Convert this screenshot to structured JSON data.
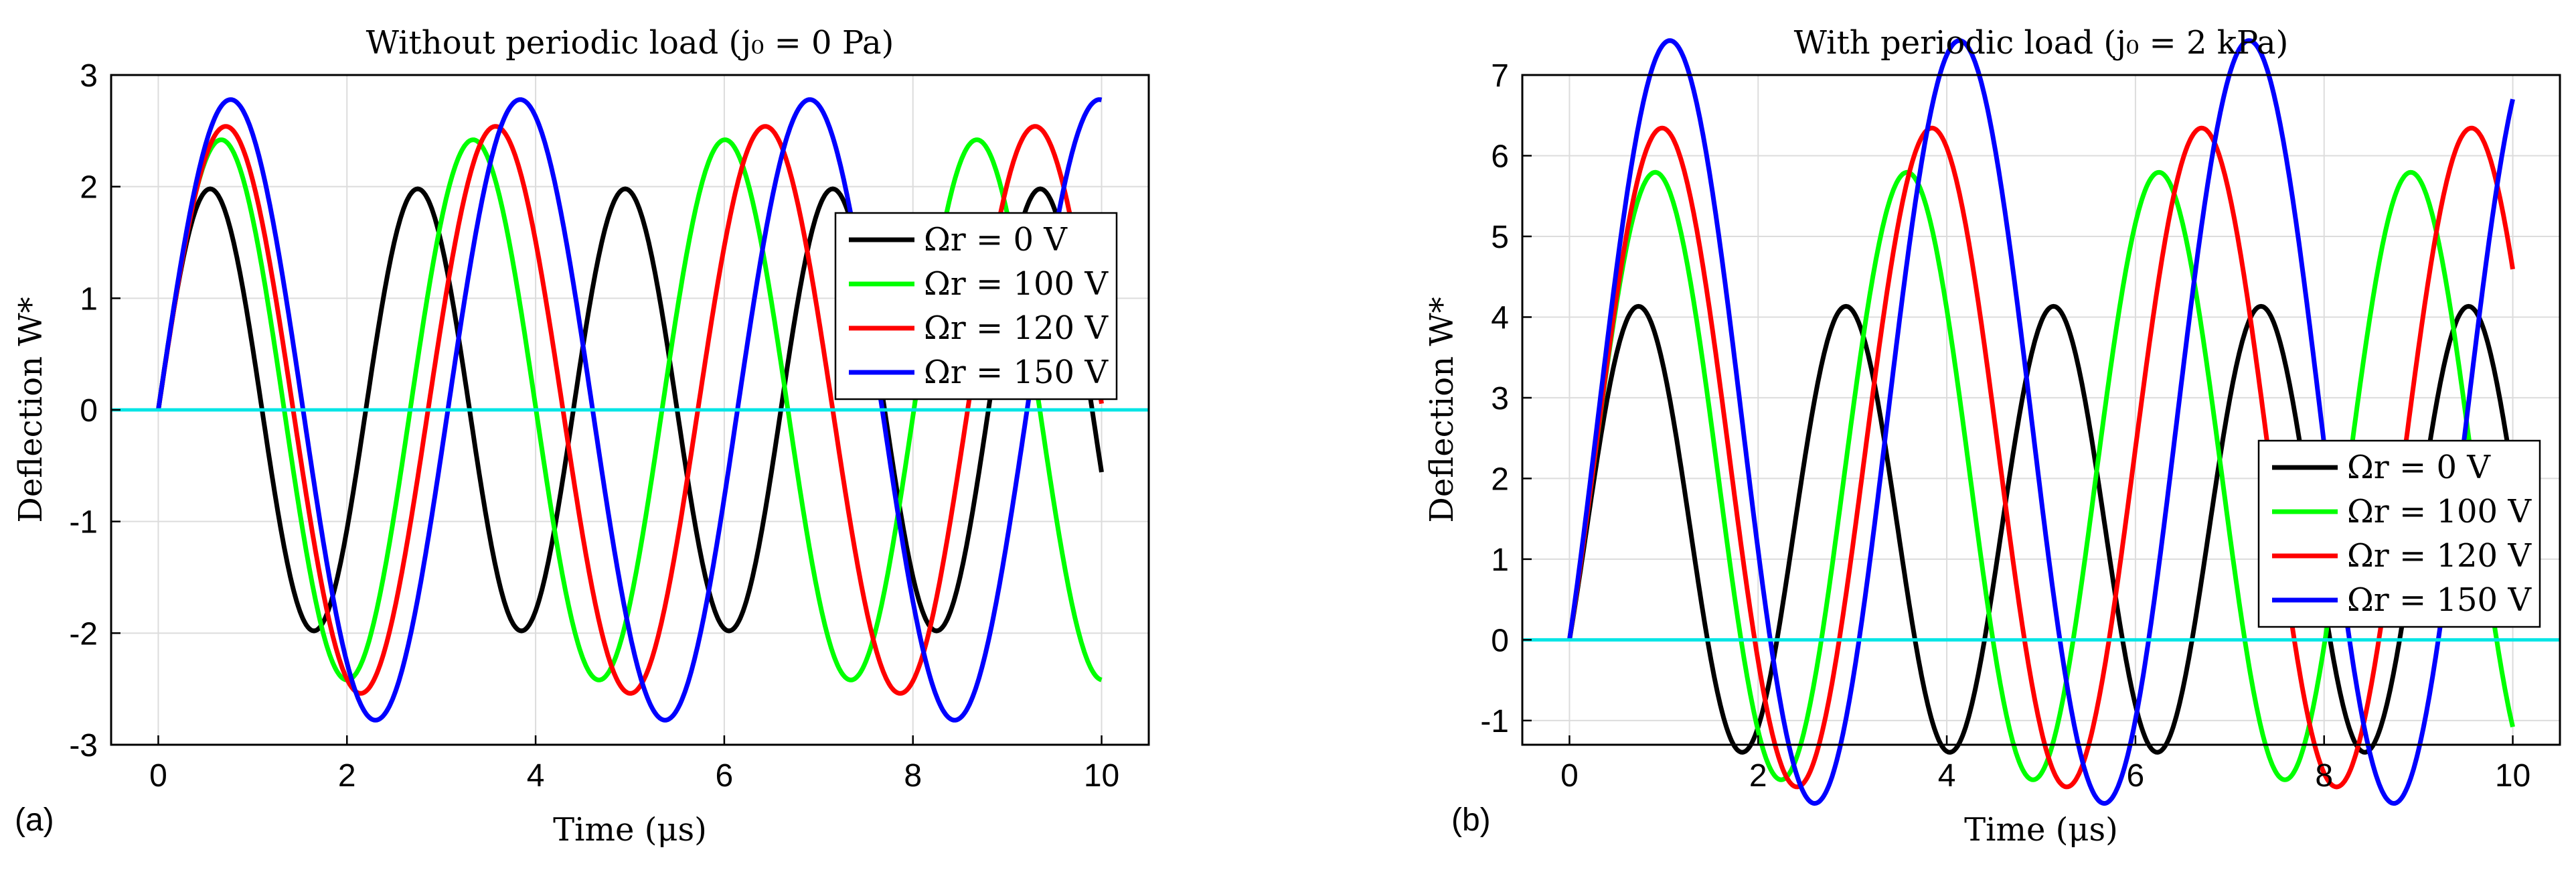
{
  "chart_data": [
    {
      "type": "line",
      "panel_label": "(a)",
      "title": "Without periodic load (j₀ = 0 Pa)",
      "xlabel": "Time (μs)",
      "ylabel": "Deflection W*",
      "xlim": [
        -0.5,
        10.5
      ],
      "ylim": [
        -3,
        3
      ],
      "xticks": [
        "0",
        "2",
        "4",
        "6",
        "8",
        "10"
      ],
      "yticks": [
        "-3",
        "-2",
        "-1",
        "0",
        "1",
        "2",
        "3"
      ],
      "grid": true,
      "legend_position": "right",
      "reference_line": {
        "y": 0,
        "color": "#00e5e5"
      },
      "series": [
        {
          "name": "Ωr = 0 V",
          "color": "#000000",
          "amplitude": 1.98,
          "period_us": 2.2,
          "offset": 0
        },
        {
          "name": "Ωr = 100 V",
          "color": "#00ff00",
          "amplitude": 2.42,
          "period_us": 2.67,
          "offset": 0
        },
        {
          "name": "Ωr = 120 V",
          "color": "#ff0000",
          "amplitude": 2.54,
          "period_us": 2.86,
          "offset": 0
        },
        {
          "name": "Ωr = 150 V",
          "color": "#0000ff",
          "amplitude": 2.78,
          "period_us": 3.07,
          "offset": 0
        }
      ]
    },
    {
      "type": "line",
      "panel_label": "(b)",
      "title": "With periodic load (j₀ = 2 kPa)",
      "xlabel": "Time (μs)",
      "ylabel": "Deflection W*",
      "xlim": [
        -0.5,
        10.5
      ],
      "ylim": [
        -1.3,
        7
      ],
      "xticks": [
        "0",
        "2",
        "4",
        "6",
        "8",
        "10"
      ],
      "yticks": [
        "-1",
        "0",
        "1",
        "2",
        "3",
        "4",
        "5",
        "6",
        "7"
      ],
      "grid": true,
      "legend_position": "bottom-right",
      "reference_line": {
        "y": 0,
        "color": "#00e5e5"
      },
      "series": [
        {
          "name": "Ωr = 0 V",
          "color": "#000000",
          "amplitude": 2.4,
          "period_us": 2.2,
          "offset": 1.37
        },
        {
          "name": "Ωr = 100 V",
          "color": "#00ff00",
          "amplitude": 3.17,
          "period_us": 2.67,
          "offset": 2.03
        },
        {
          "name": "Ωr = 120 V",
          "color": "#ff0000",
          "amplitude": 3.4,
          "period_us": 2.86,
          "offset": 2.26
        },
        {
          "name": "Ωr = 150 V",
          "color": "#0000ff",
          "amplitude": 3.88,
          "period_us": 3.07,
          "offset": 2.7
        }
      ]
    }
  ]
}
